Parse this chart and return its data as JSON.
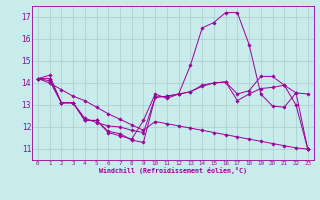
{
  "bg_color": "#c8ecec",
  "line_color": "#990099",
  "grid_color": "#aacccc",
  "x_ticks": [
    0,
    1,
    2,
    3,
    4,
    5,
    6,
    7,
    8,
    9,
    10,
    11,
    12,
    13,
    14,
    15,
    16,
    17,
    18,
    19,
    20,
    21,
    22,
    23
  ],
  "y_ticks": [
    11,
    12,
    13,
    14,
    15,
    16,
    17
  ],
  "ylim": [
    10.5,
    17.5
  ],
  "xlim": [
    -0.5,
    23.5
  ],
  "xlabel": "Windchill (Refroidissement éolien,°C)",
  "series1": {
    "x": [
      0,
      1,
      2,
      3,
      4,
      5,
      6,
      7,
      8,
      9,
      10,
      11,
      12,
      13,
      14,
      15,
      16,
      17,
      18,
      19,
      20,
      21,
      22,
      23
    ],
    "y": [
      14.2,
      14.35,
      13.1,
      13.1,
      12.3,
      12.3,
      11.75,
      11.6,
      11.45,
      12.3,
      13.5,
      13.3,
      13.5,
      14.8,
      16.5,
      16.75,
      17.2,
      17.2,
      15.75,
      13.5,
      12.95,
      12.9,
      13.55,
      13.5
    ]
  },
  "series2": {
    "x": [
      0,
      1,
      2,
      3,
      4,
      5,
      6,
      7,
      8,
      9,
      10,
      11,
      12,
      13,
      14,
      15,
      16,
      17,
      18,
      19,
      20,
      21,
      22,
      23
    ],
    "y": [
      14.2,
      14.2,
      13.1,
      13.1,
      12.3,
      12.3,
      11.8,
      11.7,
      11.4,
      11.3,
      13.35,
      13.4,
      13.5,
      13.6,
      13.85,
      14.0,
      14.05,
      13.5,
      13.65,
      14.3,
      14.3,
      13.9,
      13.55,
      11.0
    ]
  },
  "series3": {
    "x": [
      0,
      1,
      2,
      3,
      4,
      5,
      6,
      7,
      8,
      9,
      10,
      11,
      12,
      13,
      14,
      15,
      16,
      17,
      18,
      19,
      20,
      21,
      22,
      23
    ],
    "y": [
      14.2,
      14.1,
      13.1,
      13.1,
      12.4,
      12.2,
      12.05,
      12.0,
      11.85,
      11.75,
      13.35,
      13.4,
      13.5,
      13.6,
      13.9,
      14.0,
      14.05,
      13.2,
      13.5,
      13.75,
      13.8,
      13.9,
      13.0,
      11.0
    ]
  },
  "series4": {
    "x": [
      0,
      1,
      2,
      3,
      4,
      5,
      6,
      7,
      8,
      9,
      10,
      11,
      12,
      13,
      14,
      15,
      16,
      17,
      18,
      19,
      20,
      21,
      22,
      23
    ],
    "y": [
      14.2,
      14.0,
      13.7,
      13.4,
      13.2,
      12.9,
      12.6,
      12.35,
      12.1,
      11.85,
      12.25,
      12.15,
      12.05,
      11.95,
      11.85,
      11.75,
      11.65,
      11.55,
      11.45,
      11.35,
      11.25,
      11.15,
      11.05,
      11.0
    ]
  }
}
